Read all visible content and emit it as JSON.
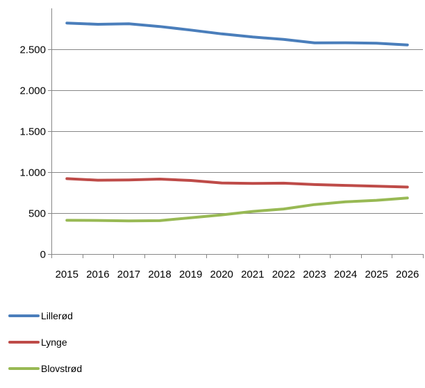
{
  "chart_data": {
    "type": "line",
    "title": "",
    "xlabel": "",
    "ylabel": "",
    "x": [
      "2015",
      "2016",
      "2017",
      "2018",
      "2019",
      "2020",
      "2021",
      "2022",
      "2023",
      "2024",
      "2025",
      "2026"
    ],
    "ylim": [
      0,
      3000
    ],
    "yticks": [
      0,
      500,
      1000,
      1500,
      2000,
      2500
    ],
    "ytick_labels": [
      "0",
      "500",
      "1.000",
      "1.500",
      "2.000",
      "2.500"
    ],
    "grid": true,
    "legend_position": "bottom-left",
    "series": [
      {
        "name": "Lillerød",
        "color": "#4a7ebb",
        "values": [
          2820,
          2805,
          2812,
          2778,
          2735,
          2688,
          2650,
          2620,
          2578,
          2580,
          2574,
          2553
        ]
      },
      {
        "name": "Lynge",
        "color": "#be4b48",
        "values": [
          920,
          902,
          905,
          915,
          898,
          868,
          862,
          865,
          848,
          838,
          828,
          818
        ]
      },
      {
        "name": "Blovstrød",
        "color": "#98b954",
        "values": [
          412,
          410,
          404,
          408,
          443,
          478,
          520,
          550,
          604,
          637,
          656,
          685
        ]
      }
    ]
  }
}
